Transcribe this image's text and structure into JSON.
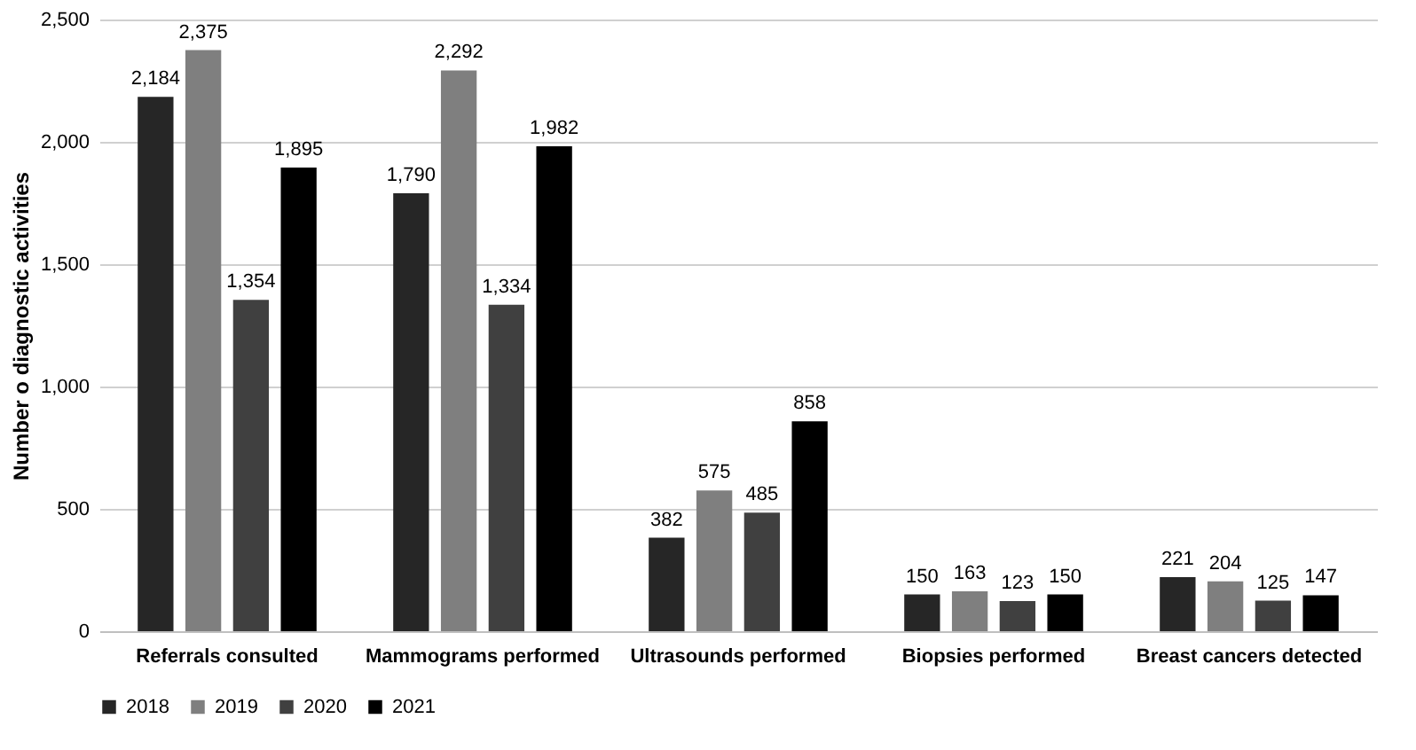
{
  "chart_data": {
    "type": "bar",
    "ylabel": "Number o diagnostic activities",
    "categories": [
      "Referrals consulted",
      "Mammograms performed",
      "Ultrasounds performed",
      "Biopsies performed",
      "Breast cancers detected"
    ],
    "series": [
      {
        "name": "2018",
        "color": "#262626",
        "values": [
          2184,
          1790,
          382,
          150,
          221
        ],
        "value_labels": [
          "2,184",
          "1,790",
          "382",
          "150",
          "221"
        ]
      },
      {
        "name": "2019",
        "color": "#7f7f7f",
        "values": [
          2375,
          2292,
          575,
          163,
          204
        ],
        "value_labels": [
          "2,375",
          "2,292",
          "575",
          "163",
          "204"
        ]
      },
      {
        "name": "2020",
        "color": "#404040",
        "values": [
          1354,
          1334,
          485,
          123,
          125
        ],
        "value_labels": [
          "1,354",
          "1,334",
          "485",
          "123",
          "125"
        ]
      },
      {
        "name": "2021",
        "color": "#000000",
        "values": [
          1895,
          1982,
          858,
          150,
          147
        ],
        "value_labels": [
          "1,895",
          "1,982",
          "858",
          "150",
          "147"
        ]
      }
    ],
    "ylim": [
      0,
      2500
    ],
    "yticks": [
      0,
      {
        "value": 500,
        "label": "500"
      },
      {
        "value": 1000,
        "label": "1,000"
      },
      {
        "value": 1500,
        "label": "1,500"
      },
      {
        "value": 2000,
        "label": "2,000"
      },
      {
        "value": 2500,
        "label": "2,500"
      }
    ],
    "grid": "y",
    "legend": "bottom"
  }
}
